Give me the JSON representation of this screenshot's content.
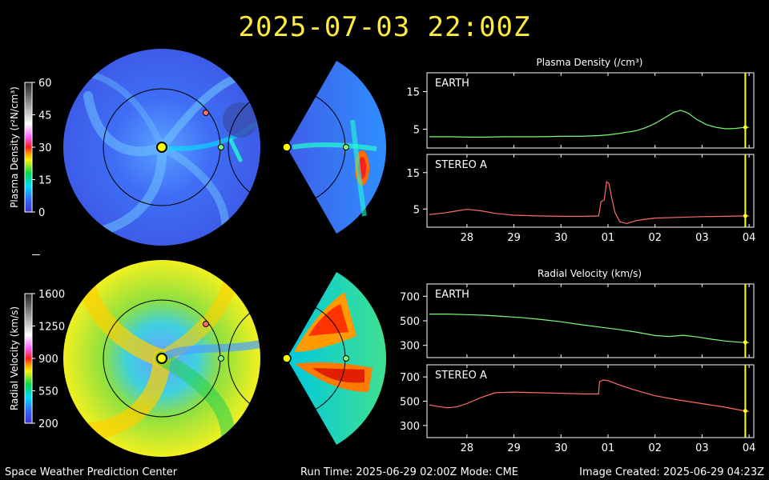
{
  "title": "2025-07-03  22:00Z",
  "footer": {
    "left": "Space Weather Prediction Center",
    "center": "Run Time: 2025-06-29 02:00Z  Mode: CME",
    "right": "Image Created: 2025-06-29 04:23Z"
  },
  "colorbars": [
    {
      "label": "Plasma Density (r²N/cm³)",
      "ticks": [
        60,
        45,
        30,
        15,
        0
      ],
      "range": [
        0,
        60
      ]
    },
    {
      "label": "Radial Velocity (km/s)",
      "ticks": [
        1600,
        1250,
        900,
        550,
        200
      ],
      "range": [
        200,
        1600
      ]
    }
  ],
  "colors": {
    "earth_trace": "#7CFC7C",
    "stereo_trace": "#FF6B6B",
    "current_time": "#FFFF33",
    "title": "#FFEB3B"
  },
  "chart_data": [
    {
      "type": "line",
      "title": "Plasma Density (/cm³)",
      "panels": [
        {
          "name": "EARTH",
          "ylim": [
            0,
            20
          ],
          "yticks": [
            5,
            15
          ],
          "x": [
            27.2,
            27.6,
            28.0,
            28.4,
            28.8,
            29.2,
            29.6,
            30.0,
            30.4,
            30.8,
            31.0,
            31.2,
            31.4,
            31.6,
            31.8,
            32.0,
            32.2,
            32.4,
            32.55,
            32.7,
            32.9,
            33.1,
            33.3,
            33.5,
            33.7,
            33.9,
            34.0
          ],
          "values": [
            3.0,
            3.0,
            2.9,
            2.9,
            3.0,
            3.0,
            3.0,
            3.1,
            3.1,
            3.3,
            3.5,
            3.8,
            4.2,
            4.6,
            5.4,
            6.5,
            8.0,
            9.5,
            10.0,
            9.3,
            7.5,
            6.2,
            5.5,
            5.1,
            5.2,
            5.5,
            5.5
          ]
        },
        {
          "name": "STEREO A",
          "ylim": [
            0,
            20
          ],
          "yticks": [
            5,
            15
          ],
          "x": [
            27.2,
            27.5,
            27.8,
            28.0,
            28.3,
            28.6,
            29.0,
            29.5,
            30.0,
            30.5,
            30.8,
            30.82,
            30.85,
            30.92,
            30.97,
            31.02,
            31.08,
            31.15,
            31.25,
            31.4,
            31.6,
            31.8,
            32.0,
            32.5,
            33.0,
            33.5,
            33.9,
            34.0
          ],
          "values": [
            3.5,
            3.9,
            4.5,
            4.9,
            4.5,
            3.8,
            3.3,
            3.1,
            3.0,
            3.0,
            3.1,
            4.5,
            7.0,
            7.5,
            12.5,
            12.0,
            8.0,
            4.0,
            1.5,
            1.0,
            1.8,
            2.2,
            2.5,
            2.7,
            2.9,
            3.0,
            3.1,
            3.1
          ]
        }
      ],
      "x_ticks": [
        28,
        29,
        30,
        31,
        32,
        33,
        34
      ],
      "x_tick_labels": [
        "28",
        "29",
        "30",
        "01",
        "02",
        "03",
        "04"
      ],
      "xlim": [
        27.15,
        34.1
      ],
      "current_time": 33.92
    },
    {
      "type": "line",
      "title": "Radial Velocity (km/s)",
      "panels": [
        {
          "name": "EARTH",
          "ylim": [
            200,
            800
          ],
          "yticks": [
            300,
            500,
            700
          ],
          "x": [
            27.2,
            27.6,
            28.0,
            28.4,
            28.8,
            29.2,
            29.6,
            30.0,
            30.4,
            30.8,
            31.2,
            31.6,
            32.0,
            32.3,
            32.6,
            32.9,
            33.2,
            33.5,
            33.8,
            34.0
          ],
          "values": [
            555,
            555,
            550,
            545,
            535,
            525,
            510,
            492,
            470,
            450,
            430,
            408,
            380,
            372,
            382,
            368,
            350,
            335,
            325,
            322
          ]
        },
        {
          "name": "STEREO A",
          "ylim": [
            200,
            800
          ],
          "yticks": [
            300,
            500,
            700
          ],
          "x": [
            27.2,
            27.4,
            27.6,
            27.8,
            28.0,
            28.3,
            28.6,
            29.0,
            29.5,
            30.0,
            30.5,
            30.8,
            30.82,
            30.9,
            31.0,
            31.2,
            31.5,
            32.0,
            32.5,
            33.0,
            33.5,
            33.9,
            34.0
          ],
          "values": [
            470,
            455,
            445,
            455,
            480,
            530,
            570,
            575,
            570,
            565,
            560,
            560,
            660,
            675,
            670,
            640,
            600,
            545,
            510,
            480,
            450,
            420,
            415
          ]
        }
      ],
      "x_ticks": [
        28,
        29,
        30,
        31,
        32,
        33,
        34
      ],
      "x_tick_labels": [
        "28",
        "29",
        "30",
        "01",
        "02",
        "03",
        "04"
      ],
      "xlim": [
        27.15,
        34.1
      ],
      "current_time": 33.92
    }
  ]
}
